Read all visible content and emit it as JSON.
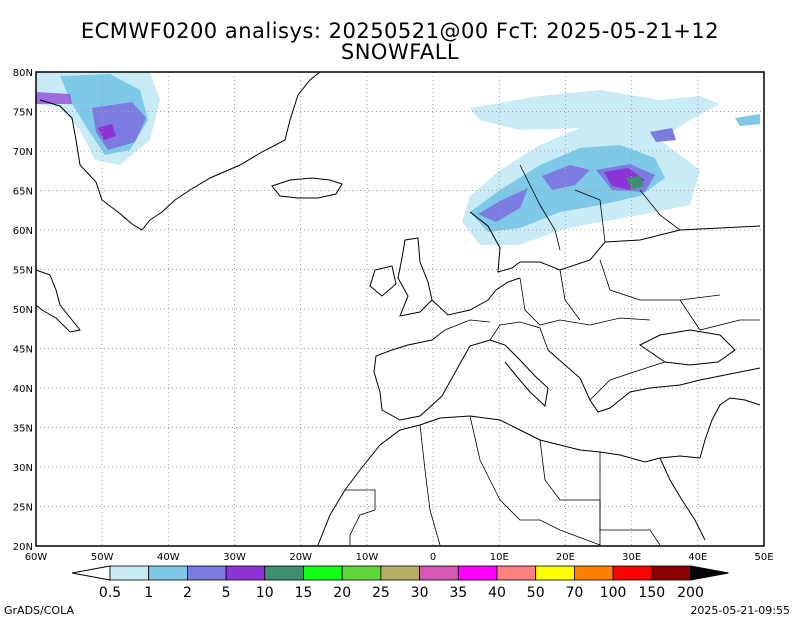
{
  "title": {
    "line1": "ECMWF0200 analisys: 20250521@00 FcT: 2025-05-21+12",
    "line2": "SNOWFALL"
  },
  "map": {
    "lon_range": [
      -60,
      50
    ],
    "lat_range": [
      20,
      80
    ],
    "grid": "dotted",
    "lat_ticks": [
      {
        "value": 80,
        "label": "80N"
      },
      {
        "value": 75,
        "label": "75N"
      },
      {
        "value": 70,
        "label": "70N"
      },
      {
        "value": 65,
        "label": "65N"
      },
      {
        "value": 60,
        "label": "60N"
      },
      {
        "value": 55,
        "label": "55N"
      },
      {
        "value": 50,
        "label": "50N"
      },
      {
        "value": 45,
        "label": "45N"
      },
      {
        "value": 40,
        "label": "40N"
      },
      {
        "value": 35,
        "label": "35N"
      },
      {
        "value": 30,
        "label": "30N"
      },
      {
        "value": 25,
        "label": "25N"
      },
      {
        "value": 20,
        "label": "20N"
      }
    ],
    "lon_ticks": [
      {
        "value": -60,
        "label": "60W"
      },
      {
        "value": -50,
        "label": "50W"
      },
      {
        "value": -40,
        "label": "40W"
      },
      {
        "value": -30,
        "label": "30W"
      },
      {
        "value": -20,
        "label": "20W"
      },
      {
        "value": -10,
        "label": "10W"
      },
      {
        "value": 0,
        "label": "0"
      },
      {
        "value": 10,
        "label": "10E"
      },
      {
        "value": 20,
        "label": "20E"
      },
      {
        "value": 30,
        "label": "30E"
      },
      {
        "value": 40,
        "label": "40E"
      },
      {
        "value": 50,
        "label": "50E"
      }
    ]
  },
  "colorbar": {
    "colors": [
      "#c8ebf6",
      "#7ec8e8",
      "#7b7be0",
      "#8c34d6",
      "#3e8f70",
      "#12ff18",
      "#5ed63a",
      "#b8ad64",
      "#d658b4",
      "#ff00ff",
      "#ff8080",
      "#ffff00",
      "#ff8000",
      "#ff0000",
      "#8b0000"
    ],
    "labels": [
      "0.5",
      "1",
      "2",
      "5",
      "10",
      "15",
      "20",
      "25",
      "30",
      "35",
      "40",
      "50",
      "70",
      "100",
      "150",
      "200"
    ]
  },
  "footer": {
    "left": "GrADS/COLA",
    "right": "2025-05-21-09:55"
  }
}
